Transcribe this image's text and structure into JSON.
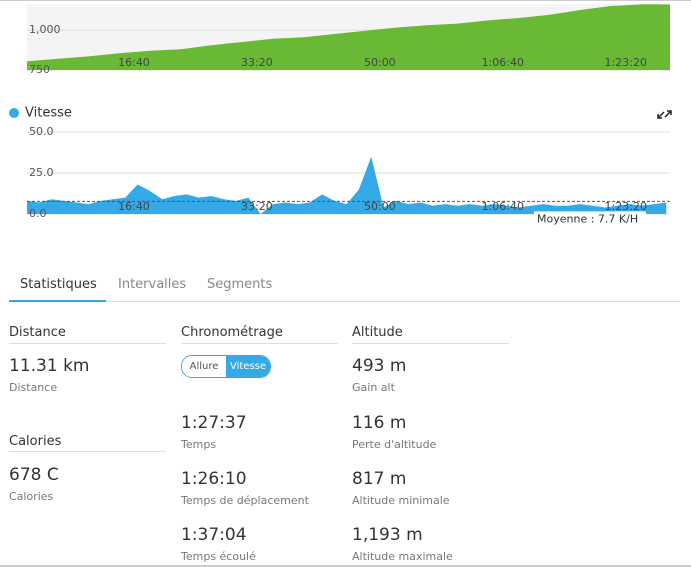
{
  "chart_data": [
    {
      "type": "area",
      "color": "#6ab934",
      "x": [
        130,
        380,
        630,
        880,
        1130,
        1380,
        1630,
        1880,
        2130,
        2380,
        2630,
        2880,
        3130,
        3380,
        3630,
        3880,
        4130,
        4380,
        4630,
        4880,
        5130,
        5360
      ],
      "values": [
        805,
        820,
        835,
        855,
        870,
        880,
        905,
        925,
        945,
        955,
        975,
        995,
        1015,
        1030,
        1040,
        1060,
        1075,
        1095,
        1125,
        1150,
        1160,
        1160
      ],
      "xlim": [
        130,
        5360
      ],
      "ylim": [
        750,
        1160
      ],
      "xticks": [
        {
          "value": 1000,
          "label": "16:40"
        },
        {
          "value": 2000,
          "label": "33:20"
        },
        {
          "value": 3000,
          "label": "50:00"
        },
        {
          "value": 4000,
          "label": "1:06:40"
        },
        {
          "value": 5000,
          "label": "1:23:20"
        }
      ],
      "yticks": [
        {
          "value": 1000,
          "label": "1,000"
        },
        {
          "value": 750,
          "label": "750"
        }
      ],
      "grid": true
    },
    {
      "type": "area",
      "name": "Vitesse",
      "color": "#33a9e8",
      "x": [
        130,
        230,
        330,
        430,
        530,
        630,
        730,
        830,
        930,
        1030,
        1130,
        1230,
        1330,
        1430,
        1530,
        1630,
        1730,
        1830,
        1930,
        2030,
        2130,
        2230,
        2330,
        2430,
        2530,
        2630,
        2730,
        2830,
        2930,
        3030,
        3130,
        3230,
        3330,
        3430,
        3530,
        3630,
        3730,
        3830,
        3930,
        4030,
        4130,
        4230,
        4330,
        4430,
        4530,
        4630,
        4730,
        4830,
        4930,
        5030,
        5130,
        5230,
        5330
      ],
      "values": [
        8,
        7,
        9,
        8,
        7,
        6,
        8,
        9,
        10,
        18,
        14,
        9,
        11,
        12,
        10,
        11,
        9,
        8,
        10,
        0,
        6,
        7,
        6,
        7,
        12,
        8,
        6,
        15,
        35,
        4,
        8,
        6,
        7,
        5,
        6,
        5,
        6,
        5,
        6,
        5,
        4,
        5,
        6,
        5,
        5,
        6,
        5,
        4,
        5,
        6,
        5,
        6,
        7
      ],
      "xlim": [
        130,
        5360
      ],
      "ylim": [
        0,
        50
      ],
      "xticks": [
        {
          "value": 1000,
          "label": "16:40"
        },
        {
          "value": 2000,
          "label": "33:20"
        },
        {
          "value": 3000,
          "label": "50:00"
        },
        {
          "value": 4000,
          "label": "1:06:40"
        },
        {
          "value": 5000,
          "label": "1:23:20"
        }
      ],
      "yticks": [
        {
          "value": 50,
          "label": "50.0"
        },
        {
          "value": 25,
          "label": "25.0"
        },
        {
          "value": 0,
          "label": "0.0"
        }
      ],
      "average": 7.7,
      "average_label": "Moyenne : 7.7 K/H",
      "grid": true
    }
  ],
  "tabs": [
    "Statistiques",
    "Intervalles",
    "Segments"
  ],
  "stats": {
    "distance": {
      "title": "Distance",
      "items": [
        {
          "value": "11.31 km",
          "label": "Distance"
        }
      ]
    },
    "calories": {
      "title": "Calories",
      "items": [
        {
          "value": "678 C",
          "label": "Calories"
        }
      ]
    },
    "timing": {
      "title": "Chronométrage",
      "toggle": [
        "Allure",
        "Vitesse"
      ],
      "items": [
        {
          "value": "1:27:37",
          "label": "Temps"
        },
        {
          "value": "1:26:10",
          "label": "Temps de déplacement"
        },
        {
          "value": "1:37:04",
          "label": "Temps écoulé"
        }
      ]
    },
    "altitude": {
      "title": "Altitude",
      "items": [
        {
          "value": "493 m",
          "label": "Gain alt"
        },
        {
          "value": "116 m",
          "label": "Perte d'altitude"
        },
        {
          "value": "817 m",
          "label": "Altitude minimale"
        },
        {
          "value": "1,193 m",
          "label": "Altitude maximale"
        }
      ]
    }
  }
}
